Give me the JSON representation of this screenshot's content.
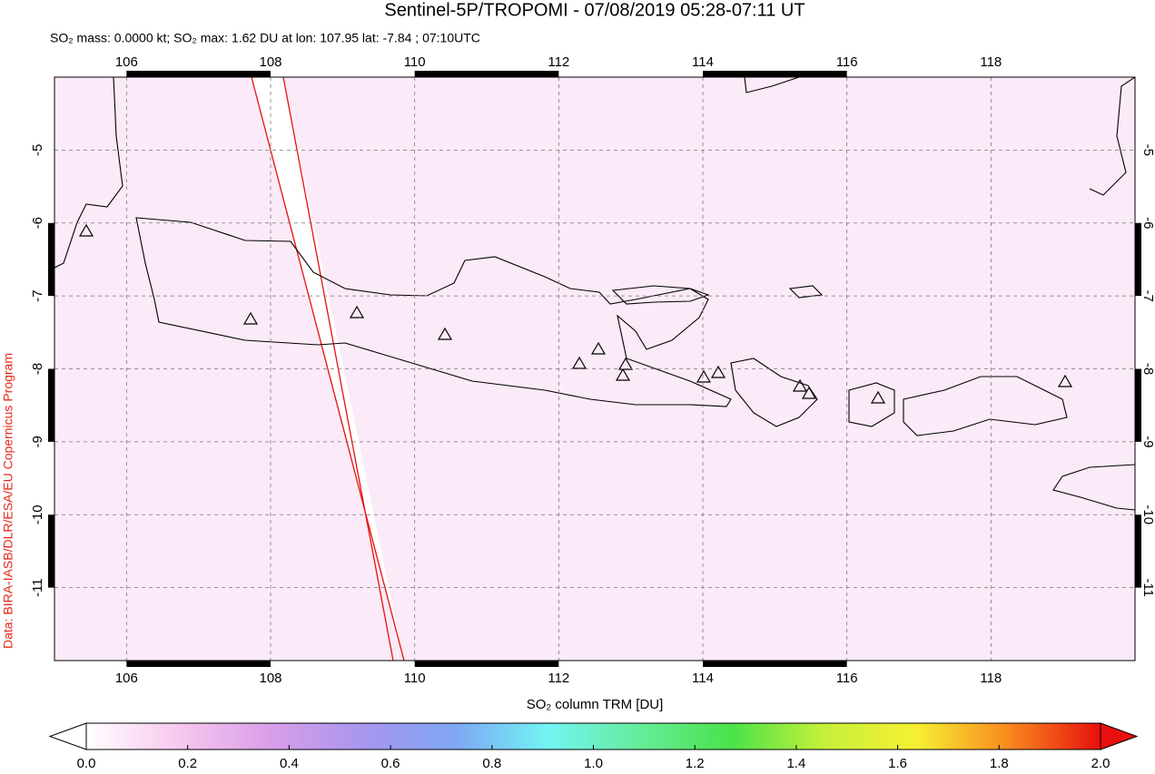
{
  "map": {
    "title": "Sentinel-5P/TROPOMI - 07/08/2019 05:28-07:11 UT",
    "subtitle": "SO₂ mass: 0.0000 kt; SO₂ max: 1.62 DU at lon: 107.95 lat: -7.84 ; 07:10UTC",
    "credit": "Data: BIRA-IASB/DLR/ESA/EU Copernicus Program",
    "xlim": [
      105,
      120
    ],
    "ylim": [
      -12,
      -4
    ],
    "xticks": [
      106,
      108,
      110,
      112,
      114,
      116,
      118
    ],
    "yticks": [
      -11,
      -10,
      -9,
      -8,
      -7,
      -6,
      -5
    ],
    "colorbar": {
      "label": "SO₂ column TRM [DU]",
      "lim": [
        0,
        2
      ],
      "ticks": [
        {
          "value": 0,
          "label": "0.0"
        },
        {
          "value": 0.2,
          "label": "0.2"
        },
        {
          "value": 0.4,
          "label": "0.4"
        },
        {
          "value": 0.6,
          "label": "0.6"
        },
        {
          "value": 0.8,
          "label": "0.8"
        },
        {
          "value": 1,
          "label": "1.0"
        },
        {
          "value": 1.2,
          "label": "1.2"
        },
        {
          "value": 1.4,
          "label": "1.4"
        },
        {
          "value": 1.6,
          "label": "1.6"
        },
        {
          "value": 1.8,
          "label": "1.8"
        },
        {
          "value": 2,
          "label": "2.0"
        }
      ],
      "colormap": [
        "#ffffff",
        "#f6c8ee",
        "#d99ee8",
        "#a896ee",
        "#7fa6f4",
        "#72f4f4",
        "#66ec9a",
        "#4ae24a",
        "#c6f03a",
        "#f6f034",
        "#f88a1e",
        "#e8100e"
      ]
    }
  }
}
